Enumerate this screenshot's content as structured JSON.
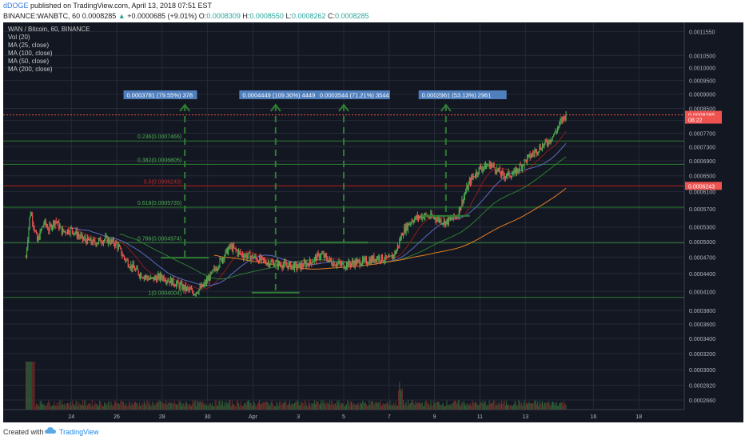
{
  "header": {
    "user": "dDOGE",
    "published": "published on TradingView.com, April 13, 2018 07:51 EST",
    "symbol": "BINANCE:WANBTC, 60",
    "last": "0.0008285",
    "change_arrow": "▲",
    "change": "+0.0000685 (+9.01%)",
    "o_label": "O:",
    "o_value": "0.0008309",
    "h_label": "H:",
    "h_value": "0.0008550",
    "l_label": "L:",
    "l_value": "0.0008262",
    "c_label": "C:",
    "c_value": "0.0008285"
  },
  "legend": [
    "WAN / Bitcoin, 60, BINANCE",
    "Vol (20)",
    "MA (25, close)",
    "MA (100, close)",
    "MA (50, close)",
    "MA (200, close)"
  ],
  "footer": {
    "created_with": "Created with",
    "brand": "TradingView"
  },
  "colors": {
    "background": "#131722",
    "grid": "#242a38",
    "up": "#4caf50",
    "down": "#ef5350",
    "fib": "#2e7d32",
    "fib_text": "#4caf50",
    "fib_50": "#b71c1c",
    "ma25": "#8e1b1b",
    "ma50": "#5c6bc0",
    "ma100": "#2e7d32",
    "ma200": "#e67e22",
    "label_box": "#4f7fbd"
  },
  "chart_data": {
    "type": "candlestick",
    "x_ticks": [
      "24",
      "26",
      "28",
      "30",
      "Apr",
      "3",
      "5",
      "7",
      "9",
      "11",
      "13",
      "16",
      "18"
    ],
    "y_ticks": [
      "0.0011550",
      "0.0010500",
      "0.0010000",
      "0.0009500",
      "0.0009000",
      "0.0008500",
      "0.0008100",
      "0.0007700",
      "0.0007300",
      "0.0006900",
      "0.0006500",
      "0.0006100",
      "0.0005700",
      "0.0005300",
      "0.0005000",
      "0.0004700",
      "0.0004400",
      "0.0004100",
      "0.0003800",
      "0.0003600",
      "0.0003400",
      "0.0003200",
      "0.0003000",
      "0.0002820",
      "0.0002660"
    ],
    "price_tags": [
      {
        "label": "0.0008285",
        "value": 0.0008285,
        "color": "#ef5350"
      },
      {
        "label": "08:22",
        "value": 0.000813,
        "color": "#ef5350"
      },
      {
        "label": "0.0006243",
        "value": 0.0006243,
        "color": "#ef5350"
      }
    ],
    "fib_levels": [
      {
        "label": "0.236(0.0007466)",
        "value": 0.0007466
      },
      {
        "label": "0.382(0.0006805)",
        "value": 0.0006805
      },
      {
        "label": "0.5(0.0006243)",
        "value": 0.0006243
      },
      {
        "label": "0.618(0.0005735)",
        "value": 0.0005735
      },
      {
        "label": "0.786(0.0004974)",
        "value": 0.0004974
      },
      {
        "label": "1(0.0004004)",
        "value": 0.0004004
      }
    ],
    "measure_labels": [
      "0.0003781 (79.55%) 378",
      "0.0004449 (109.30%) 4449",
      "0.0003544 (71.21%) 3544",
      "0.0002961 (53.13%) 2961"
    ],
    "price_path": [
      [
        22.0,
        0.00047
      ],
      [
        22.2,
        0.000565
      ],
      [
        22.5,
        0.0005
      ],
      [
        22.8,
        0.00054
      ],
      [
        23.0,
        0.000525
      ],
      [
        23.3,
        0.000545
      ],
      [
        23.6,
        0.00052
      ],
      [
        24.0,
        0.000525
      ],
      [
        24.5,
        0.000505
      ],
      [
        25.0,
        0.000498
      ],
      [
        25.5,
        0.000505
      ],
      [
        26.0,
        0.000495
      ],
      [
        26.3,
        0.00047
      ],
      [
        26.6,
        0.000455
      ],
      [
        27.0,
        0.00044
      ],
      [
        27.5,
        0.00043
      ],
      [
        28.0,
        0.000435
      ],
      [
        28.5,
        0.000425
      ],
      [
        29.0,
        0.000415
      ],
      [
        29.4,
        0.000408
      ],
      [
        29.8,
        0.000418
      ],
      [
        30.2,
        0.00044
      ],
      [
        30.6,
        0.000465
      ],
      [
        31.0,
        0.00049
      ],
      [
        31.5,
        0.000475
      ],
      [
        32.0,
        0.00047
      ],
      [
        32.5,
        0.000462
      ],
      [
        33.0,
        0.000458
      ],
      [
        33.5,
        0.000455
      ],
      [
        34.0,
        0.000452
      ],
      [
        34.5,
        0.00046
      ],
      [
        35.0,
        0.000475
      ],
      [
        35.5,
        0.00046
      ],
      [
        36.0,
        0.000455
      ],
      [
        36.5,
        0.00046
      ],
      [
        37.0,
        0.000462
      ],
      [
        37.5,
        0.00047
      ],
      [
        38.0,
        0.000465
      ],
      [
        38.3,
        0.00048
      ],
      [
        38.6,
        0.00052
      ],
      [
        39.0,
        0.000545
      ],
      [
        39.5,
        0.000555
      ],
      [
        40.0,
        0.00055
      ],
      [
        40.5,
        0.00054
      ],
      [
        41.0,
        0.000555
      ],
      [
        41.3,
        0.0006
      ],
      [
        41.6,
        0.00064
      ],
      [
        42.0,
        0.00067
      ],
      [
        42.5,
        0.00068
      ],
      [
        43.0,
        0.00065
      ],
      [
        43.5,
        0.000655
      ],
      [
        44.0,
        0.00069
      ],
      [
        44.5,
        0.00072
      ],
      [
        45.0,
        0.000745
      ],
      [
        45.3,
        0.00077
      ],
      [
        45.6,
        0.00081
      ],
      [
        45.8,
        0.00083
      ]
    ],
    "x_range": [
      21.0,
      51.0
    ],
    "y_range": [
      0.000256,
      0.00119
    ],
    "y_log": true
  }
}
